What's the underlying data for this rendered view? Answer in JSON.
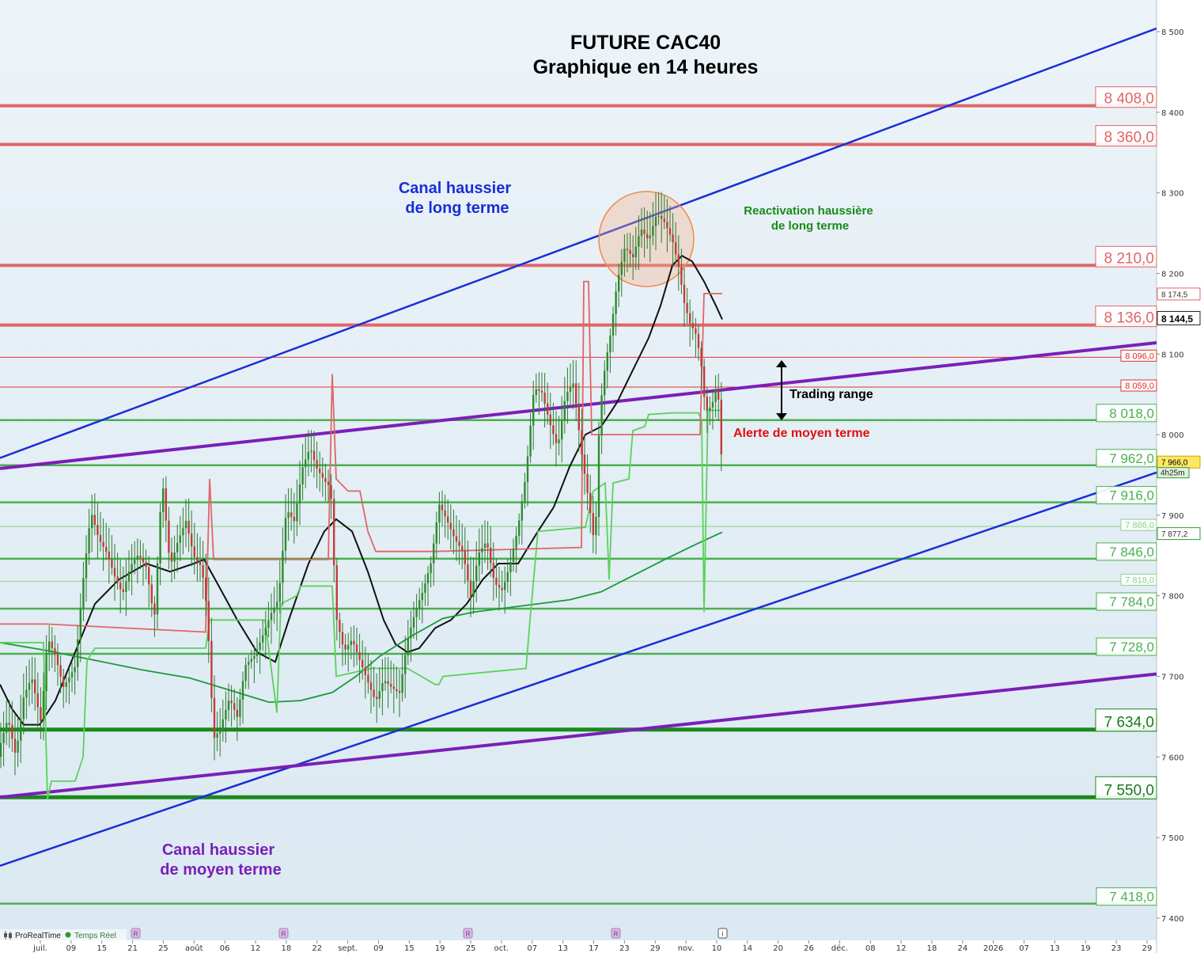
{
  "chart_data": {
    "type": "candlestick",
    "title": "FUTURE CAC40",
    "subtitle": "Graphique en 14 heures",
    "ylim": [
      7380,
      8540
    ],
    "y_ticks": [
      {
        "value": 8500,
        "label": "8 500"
      },
      {
        "value": 8400,
        "label": "8 400"
      },
      {
        "value": 8300,
        "label": "8 300"
      },
      {
        "value": 8200,
        "label": "8 200"
      },
      {
        "value": 8100,
        "label": "8 100"
      },
      {
        "value": 8000,
        "label": "8 000"
      },
      {
        "value": 7900,
        "label": "7 900"
      },
      {
        "value": 7800,
        "label": "7 800"
      },
      {
        "value": 7700,
        "label": "7 700"
      },
      {
        "value": 7600,
        "label": "7 600"
      },
      {
        "value": 7500,
        "label": "7 500"
      },
      {
        "value": 7400,
        "label": "7 400"
      }
    ],
    "x_ticks": [
      "juil.",
      "09",
      "15",
      "21",
      "25",
      "août",
      "06",
      "12",
      "18",
      "22",
      "sept.",
      "09",
      "15",
      "19",
      "25",
      "oct.",
      "07",
      "13",
      "17",
      "23",
      "29",
      "nov.",
      "10",
      "14",
      "20",
      "26",
      "déc.",
      "08",
      "12",
      "18",
      "24",
      "2026",
      "07",
      "13",
      "19",
      "23",
      "29"
    ],
    "levels": [
      {
        "value": 8408.0,
        "label": "8 408,0",
        "color": "#e06666",
        "style": "thick"
      },
      {
        "value": 8360.0,
        "label": "8 360,0",
        "color": "#e06666",
        "style": "thick"
      },
      {
        "value": 8210.0,
        "label": "8 210,0",
        "color": "#e06666",
        "style": "thick"
      },
      {
        "value": 8136.0,
        "label": "8 136,0",
        "color": "#e06666",
        "style": "thick"
      },
      {
        "value": 8096.0,
        "label": "8 096,0",
        "color": "#e03030",
        "style": "thin"
      },
      {
        "value": 8059.0,
        "label": "8 059,0",
        "color": "#e03030",
        "style": "thin"
      },
      {
        "value": 8018.0,
        "label": "8 018,0",
        "color": "#4caf50",
        "style": "medium"
      },
      {
        "value": 7962.0,
        "label": "7 962,0",
        "color": "#4caf50",
        "style": "medium"
      },
      {
        "value": 7916.0,
        "label": "7 916,0",
        "color": "#4caf50",
        "style": "medium"
      },
      {
        "value": 7886.0,
        "label": "7 886,0",
        "color": "#8bd18b",
        "style": "thin"
      },
      {
        "value": 7846.0,
        "label": "7 846,0",
        "color": "#4caf50",
        "style": "medium"
      },
      {
        "value": 7818.0,
        "label": "7 818,0",
        "color": "#8bd18b",
        "style": "thin"
      },
      {
        "value": 7784.0,
        "label": "7 784,0",
        "color": "#4caf50",
        "style": "medium"
      },
      {
        "value": 7728.0,
        "label": "7 728,0",
        "color": "#4caf50",
        "style": "medium"
      },
      {
        "value": 7634.0,
        "label": "7 634,0",
        "color": "#1a8a1a",
        "style": "xthick"
      },
      {
        "value": 7550.0,
        "label": "7 550,0",
        "color": "#1a8a1a",
        "style": "xthick"
      },
      {
        "value": 7418.0,
        "label": "7 418,0",
        "color": "#4caf50",
        "style": "medium"
      }
    ],
    "price_tags": [
      {
        "value": 8174.5,
        "label": "8 174,5",
        "kind": "red"
      },
      {
        "value": 8144.5,
        "label": "8 144,5",
        "kind": "last"
      },
      {
        "value": 7966.0,
        "label": "7 966,0",
        "kind": "yellow"
      },
      {
        "value": 7877.2,
        "label": "7 877,2",
        "kind": "green"
      }
    ],
    "countdown": "4h25m",
    "trendlines": [
      {
        "name": "Canal haussier de long terme (haut)",
        "color": "#1a2fd6",
        "points": [
          [
            0,
            7971
          ],
          [
            1462,
            8504
          ]
        ]
      },
      {
        "name": "Canal haussier de long terme (bas)",
        "color": "#1a2fd6",
        "points": [
          [
            0,
            7465
          ],
          [
            1462,
            7953
          ]
        ]
      },
      {
        "name": "Canal haussier de moyen terme (haut)",
        "color": "#7a1fb8",
        "points": [
          [
            0,
            7958
          ],
          [
            1462,
            8114
          ]
        ]
      },
      {
        "name": "Canal haussier de moyen terme (bas)",
        "color": "#7a1fb8",
        "points": [
          [
            0,
            7550
          ],
          [
            1462,
            7703
          ]
        ]
      }
    ],
    "series": [
      {
        "name": "Moyenne mobile courte",
        "color": "#111111",
        "points": [
          [
            0,
            7690
          ],
          [
            15,
            7660
          ],
          [
            30,
            7640
          ],
          [
            50,
            7640
          ],
          [
            70,
            7670
          ],
          [
            95,
            7730
          ],
          [
            120,
            7790
          ],
          [
            150,
            7820
          ],
          [
            185,
            7840
          ],
          [
            215,
            7830
          ],
          [
            245,
            7840
          ],
          [
            258,
            7845
          ],
          [
            275,
            7815
          ],
          [
            300,
            7770
          ],
          [
            325,
            7730
          ],
          [
            348,
            7718
          ],
          [
            365,
            7770
          ],
          [
            390,
            7840
          ],
          [
            410,
            7880
          ],
          [
            425,
            7895
          ],
          [
            445,
            7880
          ],
          [
            465,
            7830
          ],
          [
            485,
            7770
          ],
          [
            500,
            7740
          ],
          [
            515,
            7730
          ],
          [
            530,
            7735
          ],
          [
            550,
            7760
          ],
          [
            570,
            7770
          ],
          [
            590,
            7790
          ],
          [
            610,
            7820
          ],
          [
            630,
            7840
          ],
          [
            655,
            7840
          ],
          [
            680,
            7880
          ],
          [
            700,
            7910
          ],
          [
            720,
            7960
          ],
          [
            740,
            8000
          ],
          [
            760,
            8010
          ],
          [
            780,
            8040
          ],
          [
            800,
            8080
          ],
          [
            820,
            8120
          ],
          [
            835,
            8160
          ],
          [
            850,
            8210
          ],
          [
            862,
            8222
          ],
          [
            875,
            8215
          ],
          [
            890,
            8190
          ],
          [
            905,
            8160
          ],
          [
            913,
            8143
          ]
        ]
      },
      {
        "name": "Moyenne mobile longue",
        "color": "#1a9a3a",
        "points": [
          [
            0,
            7742
          ],
          [
            60,
            7732
          ],
          [
            120,
            7720
          ],
          [
            180,
            7708
          ],
          [
            240,
            7698
          ],
          [
            300,
            7680
          ],
          [
            340,
            7668
          ],
          [
            380,
            7670
          ],
          [
            420,
            7680
          ],
          [
            450,
            7700
          ],
          [
            480,
            7725
          ],
          [
            520,
            7750
          ],
          [
            560,
            7772
          ],
          [
            600,
            7780
          ],
          [
            640,
            7785
          ],
          [
            680,
            7790
          ],
          [
            720,
            7795
          ],
          [
            760,
            7805
          ],
          [
            800,
            7825
          ],
          [
            840,
            7845
          ],
          [
            880,
            7864
          ],
          [
            913,
            7879
          ]
        ]
      },
      {
        "name": "Stop suiveur haussier",
        "color": "#5ad25a",
        "points": [
          [
            0,
            7742
          ],
          [
            55,
            7742
          ],
          [
            60,
            7548
          ],
          [
            65,
            7570
          ],
          [
            95,
            7570
          ],
          [
            105,
            7600
          ],
          [
            110,
            7720
          ],
          [
            120,
            7735
          ],
          [
            260,
            7735
          ],
          [
            265,
            7770
          ],
          [
            335,
            7770
          ],
          [
            350,
            7655
          ],
          [
            355,
            7790
          ],
          [
            375,
            7800
          ],
          [
            380,
            7812
          ],
          [
            420,
            7812
          ],
          [
            425,
            7700
          ],
          [
            470,
            7710
          ],
          [
            515,
            7710
          ],
          [
            550,
            7690
          ],
          [
            555,
            7690
          ],
          [
            560,
            7700
          ],
          [
            665,
            7710
          ],
          [
            670,
            7770
          ],
          [
            680,
            7880
          ],
          [
            740,
            7885
          ],
          [
            750,
            7930
          ],
          [
            765,
            7940
          ],
          [
            770,
            7820
          ],
          [
            775,
            7940
          ],
          [
            795,
            7945
          ],
          [
            800,
            8005
          ],
          [
            815,
            8010
          ],
          [
            820,
            8025
          ],
          [
            850,
            8027
          ],
          [
            883,
            8027
          ],
          [
            887,
            8018
          ],
          [
            890,
            7780
          ],
          [
            895,
            8030
          ],
          [
            913,
            8030
          ]
        ]
      },
      {
        "name": "Stop suiveur baissier",
        "color": "#e06666",
        "points": [
          [
            0,
            7765
          ],
          [
            58,
            7765
          ],
          [
            260,
            7755
          ],
          [
            265,
            7945
          ],
          [
            270,
            7845
          ],
          [
            340,
            7845
          ],
          [
            345,
            7845
          ],
          [
            415,
            7845
          ],
          [
            420,
            8075
          ],
          [
            425,
            7945
          ],
          [
            440,
            7930
          ],
          [
            455,
            7930
          ],
          [
            465,
            7880
          ],
          [
            475,
            7855
          ],
          [
            550,
            7855
          ],
          [
            735,
            7860
          ],
          [
            738,
            8190
          ],
          [
            744,
            8190
          ],
          [
            748,
            8000
          ],
          [
            885,
            8000
          ],
          [
            890,
            8175
          ],
          [
            913,
            8175
          ]
        ]
      },
      {
        "name": "Prix (clôtures)",
        "color": "#2e8b2e",
        "points": [
          [
            0,
            7600
          ],
          [
            10,
            7635
          ],
          [
            20,
            7590
          ],
          [
            30,
            7670
          ],
          [
            40,
            7700
          ],
          [
            52,
            7650
          ],
          [
            60,
            7760
          ],
          [
            70,
            7740
          ],
          [
            80,
            7700
          ],
          [
            95,
            7720
          ],
          [
            105,
            7820
          ],
          [
            115,
            7900
          ],
          [
            125,
            7860
          ],
          [
            135,
            7840
          ],
          [
            145,
            7810
          ],
          [
            155,
            7790
          ],
          [
            165,
            7830
          ],
          [
            175,
            7850
          ],
          [
            185,
            7840
          ],
          [
            195,
            7780
          ],
          [
            205,
            7960
          ],
          [
            215,
            7850
          ],
          [
            225,
            7880
          ],
          [
            235,
            7900
          ],
          [
            245,
            7850
          ],
          [
            255,
            7830
          ],
          [
            262,
            7770
          ],
          [
            270,
            7610
          ],
          [
            278,
            7620
          ],
          [
            290,
            7660
          ],
          [
            300,
            7640
          ],
          [
            310,
            7710
          ],
          [
            322,
            7730
          ],
          [
            332,
            7760
          ],
          [
            342,
            7790
          ],
          [
            352,
            7810
          ],
          [
            362,
            7920
          ],
          [
            372,
            7900
          ],
          [
            382,
            7960
          ],
          [
            392,
            7980
          ],
          [
            400,
            7950
          ],
          [
            410,
            7930
          ],
          [
            418,
            7920
          ],
          [
            425,
            7760
          ],
          [
            435,
            7720
          ],
          [
            445,
            7740
          ],
          [
            455,
            7720
          ],
          [
            465,
            7700
          ],
          [
            475,
            7680
          ],
          [
            485,
            7710
          ],
          [
            495,
            7700
          ],
          [
            505,
            7690
          ],
          [
            515,
            7750
          ],
          [
            525,
            7780
          ],
          [
            535,
            7800
          ],
          [
            545,
            7830
          ],
          [
            555,
            7900
          ],
          [
            565,
            7880
          ],
          [
            575,
            7860
          ],
          [
            585,
            7850
          ],
          [
            595,
            7800
          ],
          [
            605,
            7860
          ],
          [
            615,
            7880
          ],
          [
            625,
            7830
          ],
          [
            635,
            7820
          ],
          [
            645,
            7850
          ],
          [
            655,
            7890
          ],
          [
            665,
            7950
          ],
          [
            675,
            8050
          ],
          [
            685,
            8040
          ],
          [
            695,
            8000
          ],
          [
            705,
            7970
          ],
          [
            715,
            8040
          ],
          [
            725,
            8060
          ],
          [
            735,
            7980
          ],
          [
            745,
            7920
          ],
          [
            752,
            7870
          ],
          [
            758,
            8040
          ],
          [
            765,
            8100
          ],
          [
            772,
            8140
          ],
          [
            780,
            8200
          ],
          [
            790,
            8240
          ],
          [
            800,
            8220
          ],
          [
            810,
            8250
          ],
          [
            820,
            8230
          ],
          [
            830,
            8260
          ],
          [
            840,
            8250
          ],
          [
            850,
            8230
          ],
          [
            858,
            8200
          ],
          [
            865,
            8160
          ],
          [
            872,
            8140
          ],
          [
            880,
            8130
          ],
          [
            886,
            8100
          ],
          [
            892,
            8040
          ],
          [
            900,
            8050
          ],
          [
            907,
            8080
          ],
          [
            913,
            7966
          ]
        ]
      }
    ],
    "annotations": [
      {
        "lines": [
          "Canal haussier",
          "de long terme"
        ],
        "color": "#1a2fd6"
      },
      {
        "lines": [
          "Canal haussier",
          "de moyen terme"
        ],
        "color": "#7a1fb8"
      },
      {
        "lines": [
          "Reactivation haussière",
          "de long terme"
        ],
        "color": "#1a8a1a"
      },
      {
        "lines": [
          "Trading range"
        ],
        "color": "#000000"
      },
      {
        "lines": [
          "Alerte de moyen terme"
        ],
        "color": "#e01010"
      }
    ]
  },
  "footer": {
    "brand": "ProRealTime",
    "status": "Temps Réel"
  }
}
